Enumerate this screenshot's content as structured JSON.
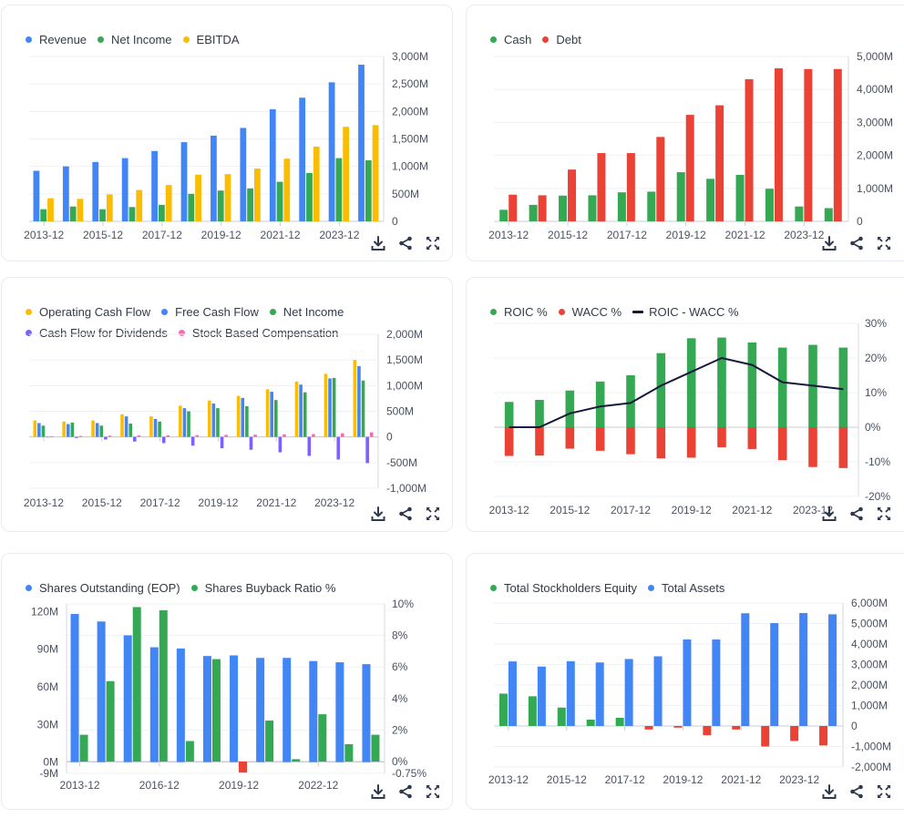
{
  "toolbar": {
    "icons": [
      "download-icon",
      "share-icon",
      "fullscreen-icon"
    ]
  },
  "chart_data": [
    {
      "id": "income",
      "type": "bar",
      "title": "",
      "categories": [
        "2013-12",
        "2014-12",
        "2015-12",
        "2016-12",
        "2017-12",
        "2018-12",
        "2019-12",
        "2020-12",
        "2021-12",
        "2022-12",
        "2023-12",
        "2024-12"
      ],
      "x_tick_labels": [
        "2013-12",
        "2015-12",
        "2017-12",
        "2019-12",
        "2021-12",
        "2023-12"
      ],
      "series": [
        {
          "name": "Revenue",
          "color": "#4285f4",
          "values": [
            920,
            1000,
            1080,
            1150,
            1280,
            1440,
            1560,
            1700,
            2040,
            2250,
            2530,
            2850
          ]
        },
        {
          "name": "Net Income",
          "color": "#34a853",
          "values": [
            220,
            270,
            220,
            260,
            300,
            500,
            560,
            600,
            720,
            880,
            1150,
            1110
          ]
        },
        {
          "name": "EBITDA",
          "color": "#fbbc04",
          "values": [
            420,
            410,
            490,
            570,
            660,
            850,
            860,
            960,
            1140,
            1360,
            1720,
            1750
          ]
        }
      ],
      "y_axis": {
        "position": "right",
        "ylim": [
          0,
          3000
        ],
        "ticks": [
          0,
          500,
          1000,
          1500,
          2000,
          2500,
          3000
        ],
        "tick_labels": [
          "0",
          "500M",
          "1,000M",
          "1,500M",
          "2,000M",
          "2,500M",
          "3,000M"
        ]
      },
      "legend": "top-left",
      "grid": true
    },
    {
      "id": "cash-debt",
      "type": "bar",
      "categories": [
        "2013-12",
        "2014-12",
        "2015-12",
        "2016-12",
        "2017-12",
        "2018-12",
        "2019-12",
        "2020-12",
        "2021-12",
        "2022-12",
        "2023-12",
        "2024-12"
      ],
      "x_tick_labels": [
        "2013-12",
        "2015-12",
        "2017-12",
        "2019-12",
        "2021-12",
        "2023-12"
      ],
      "series": [
        {
          "name": "Cash",
          "color": "#34a853",
          "values": [
            350,
            500,
            780,
            790,
            880,
            900,
            1490,
            1290,
            1410,
            990,
            450,
            400
          ]
        },
        {
          "name": "Debt",
          "color": "#ea4335",
          "values": [
            810,
            790,
            1570,
            2070,
            2070,
            2560,
            3230,
            3520,
            4310,
            4640,
            4620,
            4620
          ]
        }
      ],
      "y_axis": {
        "position": "right",
        "ylim": [
          0,
          5000
        ],
        "ticks": [
          0,
          1000,
          2000,
          3000,
          4000,
          5000
        ],
        "tick_labels": [
          "0",
          "1,000M",
          "2,000M",
          "3,000M",
          "4,000M",
          "5,000M"
        ]
      },
      "legend": "top-left",
      "grid": true
    },
    {
      "id": "cash-flow",
      "type": "bar",
      "categories": [
        "2013-12",
        "2014-12",
        "2015-12",
        "2016-12",
        "2017-12",
        "2018-12",
        "2019-12",
        "2020-12",
        "2021-12",
        "2022-12",
        "2023-12",
        "2024-12"
      ],
      "x_tick_labels": [
        "2013-12",
        "2015-12",
        "2017-12",
        "2019-12",
        "2021-12",
        "2023-12"
      ],
      "series": [
        {
          "name": "Operating Cash Flow",
          "color": "#fbbc04",
          "values": [
            320,
            300,
            320,
            440,
            400,
            610,
            710,
            800,
            930,
            1080,
            1230,
            1500
          ]
        },
        {
          "name": "Free Cash Flow",
          "color": "#4285f4",
          "values": [
            270,
            250,
            270,
            400,
            350,
            560,
            650,
            760,
            880,
            1020,
            1140,
            1380
          ]
        },
        {
          "name": "Net Income",
          "color": "#34a853",
          "values": [
            220,
            280,
            220,
            260,
            300,
            500,
            560,
            600,
            720,
            870,
            1150,
            1100
          ]
        },
        {
          "name": "Cash Flow for Dividends",
          "color": "#7b61ff",
          "values": [
            0,
            -20,
            -50,
            -90,
            -120,
            -170,
            -220,
            -250,
            -300,
            -370,
            -440,
            -510
          ]
        },
        {
          "name": "Stock Based Compensation",
          "color": "#f06bb0",
          "values": [
            15,
            20,
            25,
            30,
            30,
            35,
            40,
            45,
            50,
            55,
            70,
            90
          ]
        }
      ],
      "y_axis": {
        "position": "right",
        "ylim": [
          -1000,
          2000
        ],
        "ticks": [
          -1000,
          -500,
          0,
          500,
          1000,
          1500,
          2000
        ],
        "tick_labels": [
          "-1,000M",
          "-500M",
          "0",
          "500M",
          "1,000M",
          "1,500M",
          "2,000M"
        ]
      },
      "legend": "top-left",
      "grid": true
    },
    {
      "id": "roic-wacc",
      "type": "bar",
      "categories": [
        "2013-12",
        "2014-12",
        "2015-12",
        "2016-12",
        "2017-12",
        "2018-12",
        "2019-12",
        "2020-12",
        "2021-12",
        "2022-12",
        "2023-12",
        "2024-12"
      ],
      "x_tick_labels": [
        "2013-12",
        "2015-12",
        "2017-12",
        "2019-12",
        "2021-12",
        "2023-12"
      ],
      "stacked": true,
      "series": [
        {
          "name": "ROIC %",
          "color": "#34a853",
          "kind": "bar",
          "values": [
            7.3,
            7.9,
            10.6,
            13.2,
            15.0,
            21.4,
            25.7,
            25.9,
            24.5,
            23.0,
            23.8,
            23.0
          ]
        },
        {
          "name": "WACC %",
          "color": "#ea4335",
          "kind": "bar",
          "values": [
            -8.3,
            -8.2,
            -6.2,
            -6.8,
            -7.8,
            -9.0,
            -8.8,
            -5.8,
            -6.3,
            -9.5,
            -11.5,
            -11.8
          ]
        },
        {
          "name": "ROIC - WACC %",
          "color": "#15193a",
          "kind": "line",
          "values": [
            0,
            0,
            4,
            6,
            7,
            12,
            16,
            20,
            18,
            13,
            12,
            11
          ]
        }
      ],
      "y_axis": {
        "position": "right",
        "ylim": [
          -20,
          30
        ],
        "ticks": [
          -20,
          -10,
          0,
          10,
          20,
          30
        ],
        "tick_labels": [
          "-20%",
          "-10%",
          "0%",
          "10%",
          "20%",
          "30%"
        ]
      },
      "legend": "top-left",
      "grid": true
    },
    {
      "id": "shares",
      "type": "bar",
      "categories": [
        "2013-12",
        "2014-12",
        "2015-12",
        "2016-12",
        "2017-12",
        "2018-12",
        "2019-12",
        "2020-12",
        "2021-12",
        "2022-12",
        "2023-12",
        "2024-12"
      ],
      "x_tick_labels": [
        "2013-12",
        "2016-12",
        "2019-12",
        "2022-12"
      ],
      "series": [
        {
          "name": "Shares Outstanding (EOP)",
          "color": "#4285f4",
          "axis": "left",
          "values": [
            118,
            112,
            101,
            91.5,
            90.5,
            84.5,
            85,
            83,
            83,
            80.5,
            79.5,
            78
          ]
        },
        {
          "name": "Shares Buyback Ratio %",
          "color": "#34a853",
          "negative_color": "#ea4335",
          "axis": "right",
          "values": [
            1.7,
            5.1,
            9.8,
            9.6,
            1.3,
            6.5,
            -0.7,
            2.6,
            0.15,
            3.0,
            1.1,
            1.7
          ]
        }
      ],
      "y_axis_left": {
        "ylim": [
          -9,
          126
        ],
        "ticks": [
          -9,
          0,
          30,
          60,
          90,
          120
        ],
        "tick_labels": [
          "-9M",
          "0M",
          "30M",
          "60M",
          "90M",
          "120M"
        ]
      },
      "y_axis_right": {
        "ylim": [
          -0.75,
          10
        ],
        "ticks": [
          -0.75,
          0,
          2,
          4,
          6,
          8,
          10
        ],
        "tick_labels": [
          "-0.75%",
          "0%",
          "2%",
          "4%",
          "6%",
          "8%",
          "10%"
        ]
      },
      "legend": "top-left",
      "grid": true
    },
    {
      "id": "equity-assets",
      "type": "bar",
      "categories": [
        "2013-12",
        "2014-12",
        "2015-12",
        "2016-12",
        "2017-12",
        "2018-12",
        "2019-12",
        "2020-12",
        "2021-12",
        "2022-12",
        "2023-12",
        "2024-12"
      ],
      "x_tick_labels": [
        "2013-12",
        "2015-12",
        "2017-12",
        "2019-12",
        "2021-12",
        "2023-12"
      ],
      "series": [
        {
          "name": "Total Stockholders Equity",
          "color": "#34a853",
          "negative_color": "#ea4335",
          "values": [
            1580,
            1450,
            900,
            310,
            400,
            -170,
            -80,
            -450,
            -170,
            -1000,
            -730,
            -950
          ]
        },
        {
          "name": "Total Assets",
          "color": "#4285f4",
          "values": [
            3150,
            2900,
            3160,
            3100,
            3270,
            3400,
            4220,
            4220,
            5500,
            5020,
            5510,
            5450
          ]
        }
      ],
      "y_axis": {
        "position": "right",
        "ylim": [
          -2000,
          6000
        ],
        "ticks": [
          -2000,
          -1000,
          0,
          1000,
          2000,
          3000,
          4000,
          5000,
          6000
        ],
        "tick_labels": [
          "-2,000M",
          "-1,000M",
          "0",
          "1,000M",
          "2,000M",
          "3,000M",
          "4,000M",
          "5,000M",
          "6,000M"
        ]
      },
      "legend": "top-left",
      "grid": true
    }
  ]
}
